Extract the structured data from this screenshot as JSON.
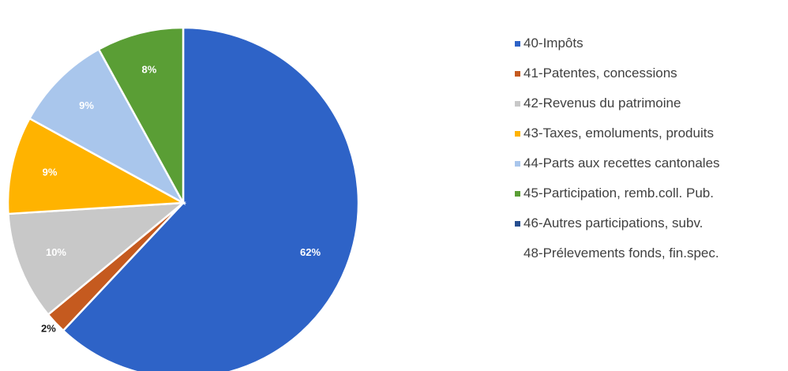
{
  "chart_data": {
    "type": "pie",
    "legend_position": "right",
    "slices": [
      {
        "name": "40-Impôts",
        "value": 62,
        "label": "62%",
        "color": "#2e63c7"
      },
      {
        "name": "41-Patentes, concessions",
        "value": 2,
        "label": "2%",
        "color": "#c55a1f"
      },
      {
        "name": "42-Revenus du patrimoine",
        "value": 10,
        "label": "10%",
        "color": "#c8c8c8"
      },
      {
        "name": "43-Taxes, emoluments, produits",
        "value": 9,
        "label": "9%",
        "color": "#ffb300"
      },
      {
        "name": "44-Parts aux recettes cantonales",
        "value": 9,
        "label": "9%",
        "color": "#a9c6ec"
      },
      {
        "name": "45-Participation, remb.coll. Pub.",
        "value": 8,
        "label": "8%",
        "color": "#5a9e35"
      },
      {
        "name": "46-Autres participations, subv.",
        "value": 0,
        "label": "",
        "color": "#264e8f"
      },
      {
        "name": "48-Prélevements fonds, fin.spec.",
        "value": 0,
        "label": "",
        "color": "#ffffff"
      }
    ]
  }
}
